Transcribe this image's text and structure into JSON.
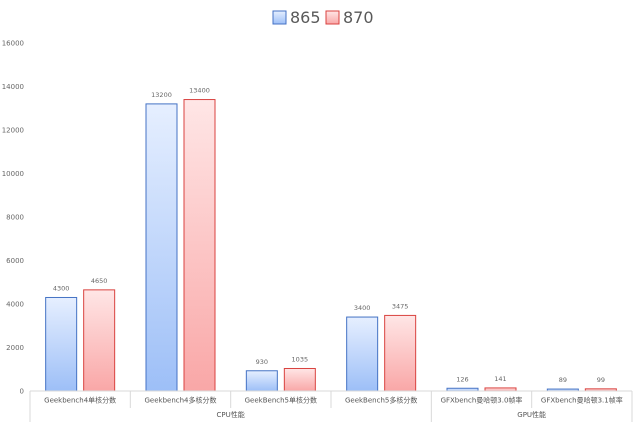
{
  "chart_data": {
    "type": "bar",
    "categories": [
      "Geekbench4单核分数",
      "Geekbench4多核分数",
      "GeekBench5单核分数",
      "GeekBench5多核分数",
      "GFXbench曼哈顿3.0帧率",
      "GFXbench曼哈顿3.1帧率"
    ],
    "groups": [
      {
        "label": "CPU性能",
        "categories": [
          0,
          1,
          2,
          3
        ]
      },
      {
        "label": "GPU性能",
        "categories": [
          4,
          5
        ]
      }
    ],
    "series": [
      {
        "name": "865",
        "values": [
          4300,
          13200,
          930,
          3400,
          126,
          89
        ],
        "color": "#9dbff7",
        "border": "#4472c4"
      },
      {
        "name": "870",
        "values": [
          4650,
          13400,
          1035,
          3475,
          141,
          99
        ],
        "color": "#f9a7a7",
        "border": "#d9423f"
      }
    ],
    "ylim": [
      0,
      16000
    ],
    "yticks": [
      0,
      2000,
      4000,
      6000,
      8000,
      10000,
      12000,
      14000,
      16000
    ],
    "legend": "top-center",
    "grid": false
  }
}
